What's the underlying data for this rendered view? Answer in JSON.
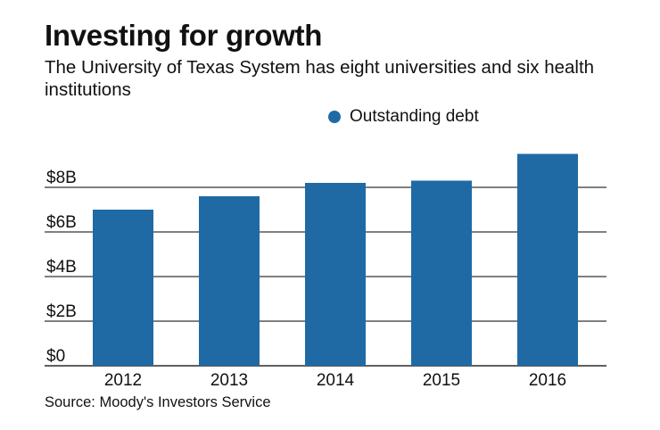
{
  "header": {
    "title": "Investing for growth",
    "subtitle": "The University of Texas System has eight universities and six health institutions"
  },
  "legend": {
    "label": "Outstanding debt"
  },
  "source": "Source: Moody's Investors Service",
  "colors": {
    "bar": "#1f6aa5",
    "gridline": "#000000",
    "text": "#111111"
  },
  "chart_data": {
    "type": "bar",
    "title": "Investing for growth",
    "xlabel": "",
    "ylabel": "",
    "categories": [
      "2012",
      "2013",
      "2014",
      "2015",
      "2016"
    ],
    "series": [
      {
        "name": "Outstanding debt",
        "values": [
          7.0,
          7.6,
          8.2,
          8.3,
          9.5
        ]
      }
    ],
    "y_ticks": [
      0,
      2,
      4,
      6,
      8
    ],
    "y_tick_labels": [
      "$0",
      "$2B",
      "$4B",
      "$6B",
      "$8B"
    ],
    "ylim": [
      0,
      10
    ],
    "units": "billions of dollars",
    "grid": true,
    "legend_position": "top-center"
  }
}
